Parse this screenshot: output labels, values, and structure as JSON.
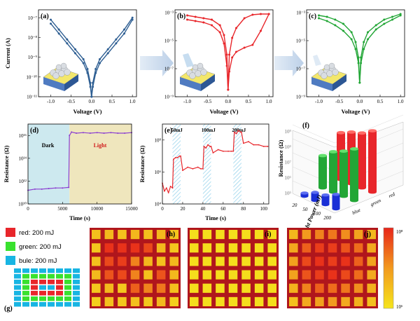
{
  "colors": {
    "blue": "#2f5f93",
    "red": "#e8262b",
    "green": "#22a636",
    "purple": "#8b3fd1",
    "dark_region": "#cde9ef",
    "light_region": "#efe6bd",
    "hatch": "#8fd0ea",
    "arrow": "#c8d8ec",
    "map_border": "#b0161c",
    "map_low": "#f5e51c",
    "map_high": "#e8261a",
    "legend_red": "#e8262b",
    "legend_green": "#39e12e",
    "legend_blue": "#18b5e3"
  },
  "chart_data": [
    {
      "id": "a",
      "panel_label": "(a)",
      "type": "line",
      "xlabel": "Voltage (V)",
      "ylabel": "Current (A)",
      "xlim": [
        -1.3,
        1.1
      ],
      "yscale": "log",
      "ylim_exp": [
        -11,
        -6.6
      ],
      "xticks": [
        "-1.0",
        "-0.5",
        "0.0",
        "0.5",
        "1.0"
      ],
      "yticks": [
        "10⁻¹¹",
        "10⁻¹⁰",
        "10⁻⁹",
        "10⁻⁸",
        "10⁻⁷"
      ],
      "series": [
        {
          "x": [
            -1.0,
            -0.8,
            -0.6,
            -0.4,
            -0.2,
            -0.1,
            -0.03,
            0,
            0.03,
            0.1,
            0.2,
            0.4,
            0.6,
            0.8,
            1.0
          ],
          "log_y_forward": [
            -7.3,
            -7.8,
            -8.3,
            -8.8,
            -9.3,
            -9.8,
            -10.5,
            -11,
            -10.5,
            -9.8,
            -9.3,
            -8.8,
            -8.3,
            -7.8,
            -7.1
          ],
          "log_y_reverse": [
            -7.1,
            -7.6,
            -8.1,
            -8.6,
            -9.1,
            -9.6,
            -10.3,
            -11,
            -10.3,
            -9.6,
            -9.1,
            -8.6,
            -8.1,
            -7.6,
            -7.0
          ]
        }
      ]
    },
    {
      "id": "b",
      "panel_label": "(b)",
      "type": "line",
      "xlabel": "Voltage (V)",
      "ylabel": "",
      "xlim": [
        -1.3,
        1.1
      ],
      "yscale": "log",
      "ylim_exp": [
        -9,
        -2.8
      ],
      "xticks": [
        "-1.0",
        "-0.5",
        "0.0",
        "0.5",
        "1.0"
      ],
      "yticks": [
        "10⁻⁹",
        "10⁻⁷",
        "10⁻⁵",
        "10⁻³"
      ],
      "series": [
        {
          "x": [
            -1.0,
            -0.8,
            -0.6,
            -0.4,
            -0.2,
            -0.1,
            -0.03,
            0,
            0.03,
            0.1,
            0.2,
            0.4,
            0.6,
            0.8,
            1.0
          ],
          "log_y_forward": [
            -3.5,
            -3.6,
            -3.7,
            -3.9,
            -4.4,
            -5.2,
            -6.8,
            -8.5,
            -7.2,
            -6.2,
            -5.8,
            -5.5,
            -5.3,
            -4.3,
            -3.1
          ],
          "log_y_reverse": [
            -3.2,
            -3.3,
            -3.4,
            -3.5,
            -3.9,
            -4.6,
            -6.0,
            -8.5,
            -6.0,
            -4.8,
            -4.1,
            -3.4,
            -3.15,
            -3.1,
            -3.1
          ]
        }
      ]
    },
    {
      "id": "c",
      "panel_label": "(c)",
      "type": "line",
      "xlabel": "Voltage (V)",
      "ylabel": "",
      "xlim": [
        -1.3,
        1.1
      ],
      "yscale": "log",
      "ylim_exp": [
        -9,
        -2.8
      ],
      "xticks": [
        "-1.0",
        "-0.5",
        "0.0",
        "0.5",
        "1.0"
      ],
      "yticks": [
        "10⁻⁹",
        "10⁻⁷",
        "10⁻⁵",
        "10⁻³"
      ],
      "series": [
        {
          "x": [
            -1.0,
            -0.8,
            -0.6,
            -0.4,
            -0.2,
            -0.1,
            -0.03,
            0,
            0.03,
            0.1,
            0.2,
            0.4,
            0.6,
            0.8,
            1.0
          ],
          "log_y_forward": [
            -3.4,
            -3.6,
            -3.9,
            -4.3,
            -4.9,
            -5.6,
            -6.6,
            -8.0,
            -6.6,
            -5.6,
            -4.9,
            -4.2,
            -3.8,
            -3.5,
            -3.2
          ],
          "log_y_reverse": [
            -3.2,
            -3.3,
            -3.5,
            -3.8,
            -4.4,
            -5.1,
            -6.2,
            -8.0,
            -6.2,
            -5.1,
            -4.4,
            -3.9,
            -3.5,
            -3.3,
            -3.1
          ]
        }
      ]
    },
    {
      "id": "d",
      "panel_label": "(d)",
      "type": "line",
      "xlabel": "Time (s)",
      "ylabel": "Resistance (Ω)",
      "xlim": [
        0,
        15000
      ],
      "yscale": "log",
      "ylim_exp": [
        10,
        17
      ],
      "xticks": [
        "0",
        "5000",
        "10000",
        "15000"
      ],
      "yticks": [
        "10¹⁰",
        "10¹²",
        "10¹⁴",
        "10¹⁶"
      ],
      "regions": [
        {
          "label": "Dark",
          "from": 0,
          "to": 6000
        },
        {
          "label": "Light",
          "from": 6000,
          "to": 15000
        }
      ],
      "series": [
        {
          "x": [
            0,
            1000,
            2000,
            3000,
            4000,
            5000,
            5900,
            6000,
            6300,
            7000,
            8000,
            9000,
            10000,
            11000,
            12000,
            13000,
            14000,
            15000
          ],
          "log_y": [
            11.2,
            11.3,
            11.3,
            11.35,
            11.4,
            11.4,
            11.45,
            16.0,
            16.3,
            16.2,
            16.25,
            16.2,
            16.25,
            16.2,
            16.25,
            16.2,
            16.2,
            16.25
          ]
        }
      ]
    },
    {
      "id": "e",
      "panel_label": "(e)",
      "type": "line",
      "xlabel": "Time (s)",
      "ylabel": "Resistance (Ω)",
      "xlim": [
        0,
        105
      ],
      "yscale": "log",
      "ylim_exp": [
        4,
        9
      ],
      "xticks": [
        "0",
        "20",
        "40",
        "60",
        "80",
        "100"
      ],
      "yticks": [
        "10⁴",
        "10⁶",
        "10⁸"
      ],
      "pulses": [
        {
          "label": "50mJ",
          "from": 10,
          "to": 18
        },
        {
          "label": "100mJ",
          "from": 40,
          "to": 48
        },
        {
          "label": "200mJ",
          "from": 70,
          "to": 78
        }
      ],
      "series": [
        {
          "x": [
            0,
            2,
            4,
            6,
            8,
            10,
            11,
            13,
            15,
            17,
            18,
            20,
            25,
            30,
            35,
            38,
            40,
            41,
            43,
            45,
            47,
            48,
            50,
            55,
            60,
            65,
            68,
            70,
            71,
            73,
            75,
            77,
            78,
            80,
            85,
            90,
            95,
            100,
            104
          ],
          "log_y": [
            5.3,
            4.8,
            5.0,
            4.7,
            5.1,
            5.0,
            6.8,
            6.9,
            6.9,
            7.0,
            7.0,
            6.1,
            6.3,
            6.2,
            6.3,
            6.2,
            6.2,
            7.6,
            7.5,
            7.7,
            7.6,
            7.6,
            7.2,
            7.4,
            7.3,
            7.3,
            7.3,
            7.3,
            8.5,
            8.4,
            8.6,
            8.5,
            8.5,
            7.8,
            7.9,
            7.7,
            7.7,
            7.6,
            7.6
          ]
        }
      ]
    },
    {
      "id": "f",
      "panel_label": "(f)",
      "type": "bar",
      "zlabel": "Resistance (Ω)",
      "xlabel": "Light Power (mJ)",
      "categories": [
        "200",
        "100",
        "50",
        "20"
      ],
      "color_axis": [
        "red",
        "green",
        "blue"
      ],
      "zticks": [
        "10⁵",
        "10⁶",
        "10⁷",
        "10⁸",
        "10⁹"
      ],
      "series": [
        {
          "name": "red",
          "log_values": [
            8.8,
            8.4,
            8.2,
            7.9
          ]
        },
        {
          "name": "green",
          "log_values": [
            8.2,
            7.8,
            7.5,
            7.0
          ]
        },
        {
          "name": "blue",
          "log_values": [
            5.9,
            5.6,
            5.5,
            5.2
          ]
        }
      ]
    },
    {
      "id": "maps",
      "type": "heatmap",
      "panel_labels": [
        "(h)",
        "(i)",
        "(j)"
      ],
      "rows": 6,
      "cols": 7,
      "colorbar": {
        "top": "10⁸",
        "bottom": "10⁶"
      },
      "matrices": [
        [
          [
            0.25,
            0.3,
            0.25,
            0.3,
            0.25,
            0.3,
            0.2
          ],
          [
            0.2,
            0.95,
            0.95,
            0.95,
            0.85,
            0.3,
            0.2
          ],
          [
            0.25,
            0.85,
            0.9,
            0.6,
            0.3,
            0.25,
            0.3
          ],
          [
            0.3,
            0.8,
            0.85,
            0.6,
            0.25,
            0.8,
            0.3
          ],
          [
            0.2,
            0.3,
            0.2,
            0.75,
            0.6,
            0.65,
            0.25
          ],
          [
            0.15,
            0.25,
            0.2,
            0.25,
            0.2,
            0.3,
            0.15
          ]
        ],
        [
          [
            0.05,
            0.05,
            0.05,
            0.05,
            0.05,
            0.05,
            0.05
          ],
          [
            0.05,
            0.05,
            0.05,
            0.05,
            0.05,
            0.05,
            0.05
          ],
          [
            0.05,
            0.05,
            0.05,
            0.05,
            0.05,
            0.05,
            0.05
          ],
          [
            0.05,
            0.05,
            0.05,
            0.05,
            0.05,
            0.05,
            0.05
          ],
          [
            0.05,
            0.05,
            0.05,
            0.05,
            0.05,
            0.05,
            0.05
          ],
          [
            0.05,
            0.05,
            0.05,
            0.05,
            0.05,
            0.05,
            0.05
          ]
        ],
        [
          [
            0.3,
            0.5,
            0.6,
            0.65,
            0.55,
            0.45,
            0.3
          ],
          [
            0.4,
            0.75,
            0.9,
            0.9,
            0.8,
            0.7,
            0.4
          ],
          [
            0.45,
            0.85,
            0.95,
            0.9,
            0.95,
            0.75,
            0.45
          ],
          [
            0.45,
            0.8,
            0.9,
            0.95,
            0.85,
            0.7,
            0.4
          ],
          [
            0.35,
            0.6,
            0.75,
            0.7,
            0.65,
            0.55,
            0.35
          ],
          [
            0.25,
            0.4,
            0.45,
            0.5,
            0.4,
            0.35,
            0.25
          ]
        ]
      ]
    }
  ],
  "legend_g": {
    "panel_label": "(g)",
    "items": [
      {
        "color": "#e8262b",
        "label": "red: 200 mJ"
      },
      {
        "color": "#39e12e",
        "label": "green: 200 mJ"
      },
      {
        "color": "#18b5e3",
        "label": "bule: 200 mJ"
      }
    ],
    "pattern": [
      "bbbbbbbb",
      "bggggggb",
      "bgrrrrgb",
      "bgrbbrgb",
      "bgrrrrgb",
      "bggggggb",
      "bbbbbbbb"
    ]
  }
}
